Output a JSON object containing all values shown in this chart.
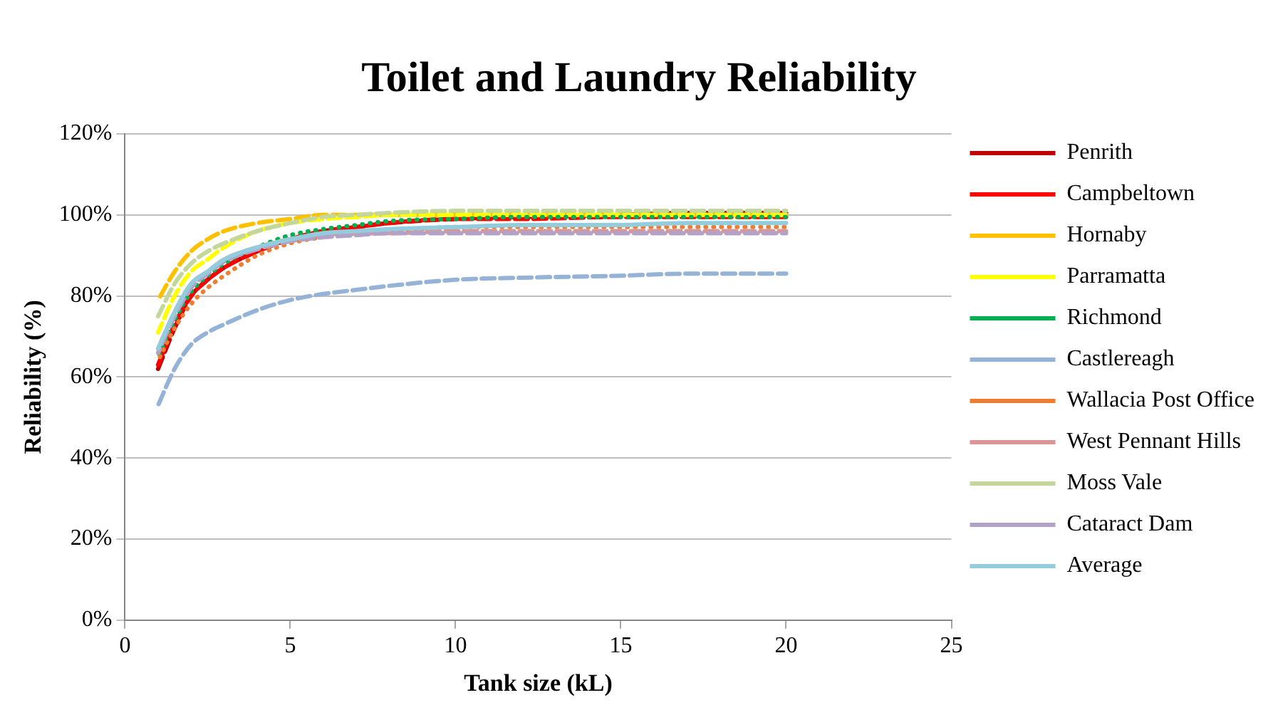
{
  "chart_data": {
    "type": "line",
    "title": "Toilet and Laundry Reliability",
    "xlabel": "Tank size (kL)",
    "ylabel": "Reliability (%)",
    "x": [
      1,
      1.5,
      2,
      2.5,
      3,
      4,
      5,
      6,
      7,
      8,
      10,
      12,
      15,
      17,
      20
    ],
    "xlim": [
      0,
      25
    ],
    "xticks": [
      0,
      5,
      10,
      15,
      20,
      25
    ],
    "ylim": [
      0,
      120
    ],
    "yticks": [
      {
        "value": 0,
        "label": "0%"
      },
      {
        "value": 20,
        "label": "20%"
      },
      {
        "value": 40,
        "label": "40%"
      },
      {
        "value": 60,
        "label": "60%"
      },
      {
        "value": 80,
        "label": "80%"
      },
      {
        "value": 100,
        "label": "100%"
      },
      {
        "value": 120,
        "label": "120%"
      }
    ],
    "grid": "y",
    "legend": "right",
    "marker": "none",
    "series": [
      {
        "name": "Penrith",
        "color": "#c00000",
        "line_style": "dashed",
        "values": [
          62,
          72,
          80,
          84,
          87,
          91,
          94,
          96,
          97,
          98,
          99,
          99.5,
          100,
          100.5,
          100.5
        ]
      },
      {
        "name": "Campbeltown",
        "color": "#ff0000",
        "line_style": "dashed",
        "values": [
          63,
          73,
          80,
          84,
          87,
          91,
          94,
          96,
          97,
          98,
          99,
          99,
          99.5,
          99.5,
          99.5
        ]
      },
      {
        "name": "Hornaby",
        "color": "#ffc000",
        "line_style": "dashed",
        "values": [
          79,
          86,
          91,
          94,
          96,
          98,
          99,
          100,
          100,
          100,
          100,
          100,
          100,
          100,
          100
        ]
      },
      {
        "name": "Parramatta",
        "color": "#ffff00",
        "line_style": "dashed",
        "values": [
          71,
          80,
          86,
          89,
          92,
          96,
          98,
          99,
          99.5,
          100,
          100,
          100,
          100,
          100,
          100
        ]
      },
      {
        "name": "Richmond",
        "color": "#00b050",
        "line_style": "dotted",
        "values": [
          65,
          74,
          81,
          85,
          88,
          92,
          95,
          96.5,
          97.5,
          98.5,
          99,
          99.5,
          99.5,
          99.5,
          99.5
        ]
      },
      {
        "name": "Castlereagh",
        "color": "#95b3d7",
        "line_style": "dashed",
        "values": [
          53,
          62,
          68,
          71,
          73,
          76.5,
          79,
          80.5,
          81.5,
          82.5,
          84,
          84.5,
          85,
          85.5,
          85.5
        ]
      },
      {
        "name": "Wallacia Post Office",
        "color": "#ed7d31",
        "line_style": "dotted",
        "values": [
          64,
          72,
          78,
          82,
          85,
          90,
          93,
          94.5,
          95.5,
          96,
          97,
          97,
          97,
          97,
          97
        ]
      },
      {
        "name": "West Pennant Hills",
        "color": "#d99694",
        "line_style": "dashed",
        "values": [
          67,
          76,
          83,
          86,
          89,
          92,
          94,
          95,
          95.5,
          95.5,
          96,
          96,
          96,
          96,
          96
        ]
      },
      {
        "name": "Moss Vale",
        "color": "#c3d69b",
        "line_style": "dashed",
        "values": [
          75,
          83,
          88,
          91,
          93,
          96,
          98,
          99.5,
          100,
          100.5,
          101,
          101,
          101,
          101,
          101
        ]
      },
      {
        "name": "Cataract Dam",
        "color": "#b3a2c7",
        "line_style": "dashed",
        "values": [
          66,
          75,
          82,
          85.5,
          88.5,
          91.5,
          93.5,
          94.5,
          95,
          95.5,
          95.5,
          95.5,
          95.5,
          95.5,
          95.5
        ]
      },
      {
        "name": "Average",
        "color": "#93cddd",
        "line_style": "solid",
        "values": [
          67,
          76,
          83,
          86,
          89,
          92,
          94,
          95.5,
          96,
          96.5,
          97,
          97.5,
          97.5,
          98,
          98
        ]
      }
    ]
  }
}
